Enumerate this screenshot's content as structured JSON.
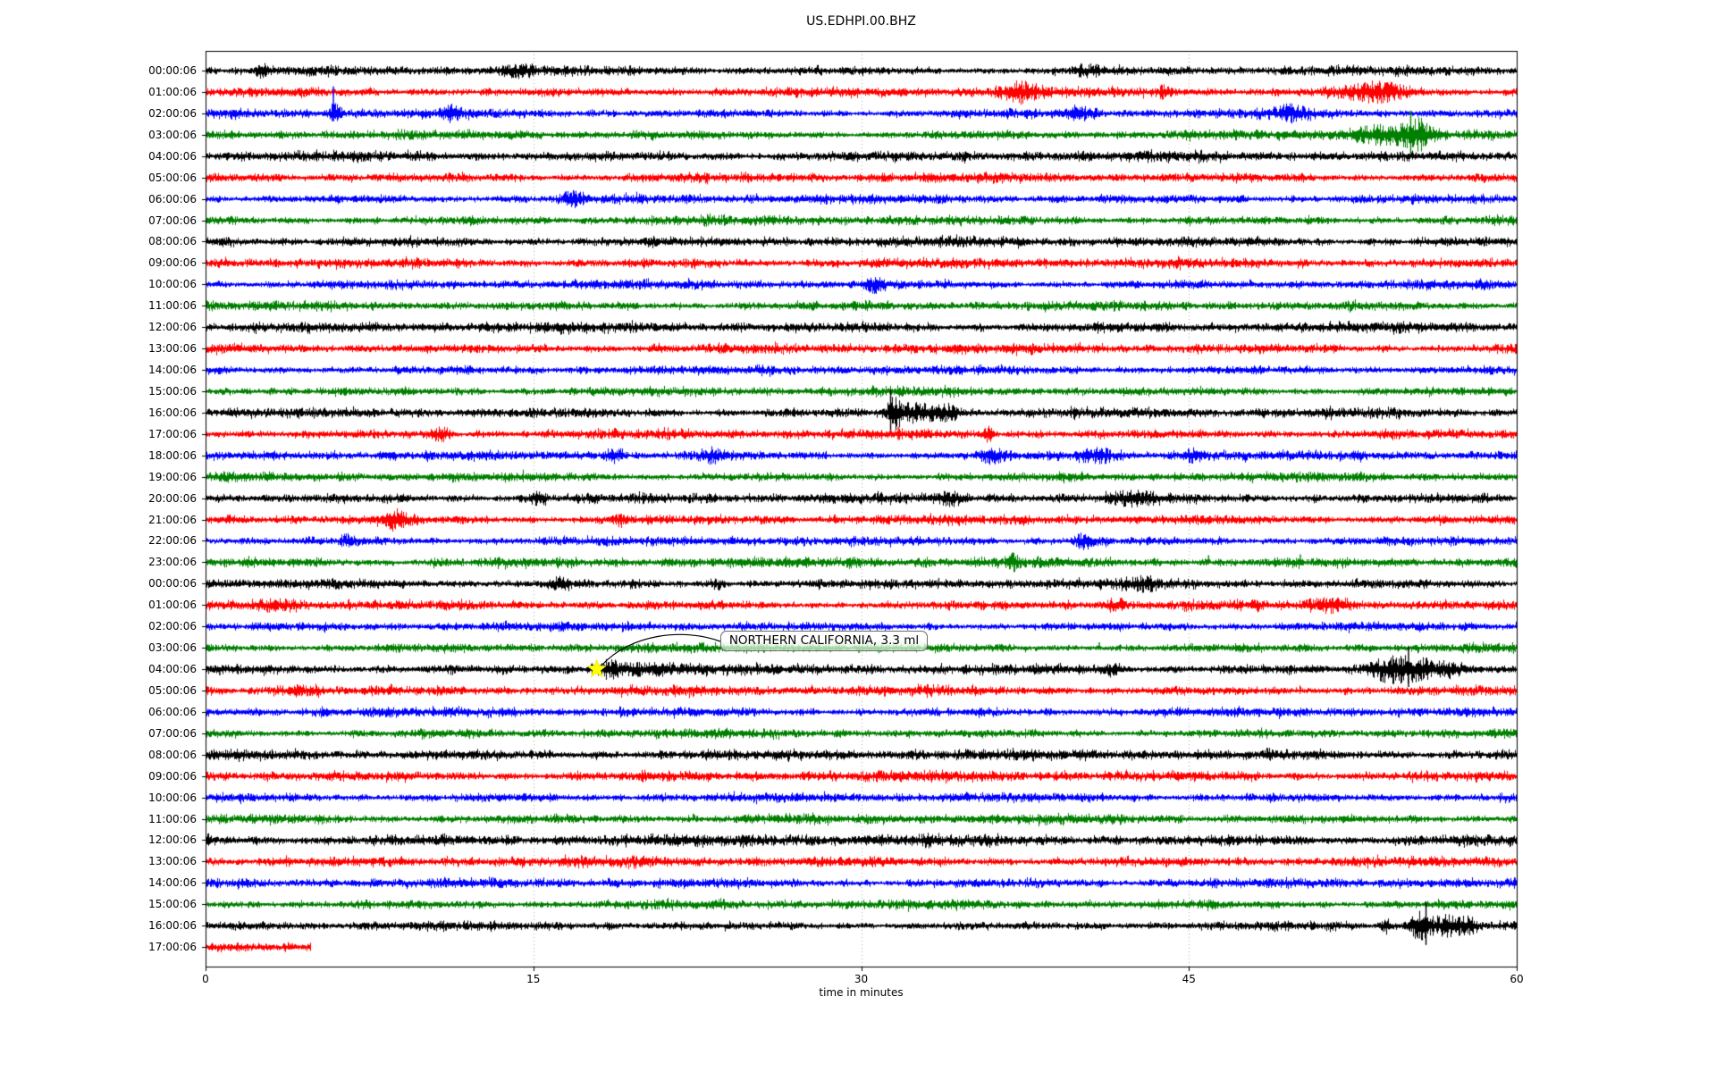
{
  "title": "US.EDHPI.00.BHZ",
  "chart_data": {
    "type": "line",
    "subtype": "seismogram-dayplot",
    "title": "US.EDHPI.00.BHZ",
    "xlabel": "time in minutes",
    "x_range": [
      0,
      60
    ],
    "x_ticks": [
      "0",
      "15",
      "30",
      "45",
      "60"
    ],
    "grid_minutes": [
      15,
      30,
      45
    ],
    "grid_on": true,
    "trace_color_cycle": [
      "#000000",
      "#ff0000",
      "#0000ff",
      "#008000"
    ],
    "rows": [
      {
        "label": "00:00:06",
        "color": "#000000",
        "amp": 2.3
      },
      {
        "label": "01:00:06",
        "color": "#ff0000",
        "amp": 2.4
      },
      {
        "label": "02:00:06",
        "color": "#0000ff",
        "amp": 2.2
      },
      {
        "label": "03:00:06",
        "color": "#008000",
        "amp": 2.2
      },
      {
        "label": "04:00:06",
        "color": "#000000",
        "amp": 2.6
      },
      {
        "label": "05:00:06",
        "color": "#ff0000",
        "amp": 2.4
      },
      {
        "label": "06:00:06",
        "color": "#0000ff",
        "amp": 2.3
      },
      {
        "label": "07:00:06",
        "color": "#008000",
        "amp": 2.3
      },
      {
        "label": "08:00:06",
        "color": "#000000",
        "amp": 2.5
      },
      {
        "label": "09:00:06",
        "color": "#ff0000",
        "amp": 2.5
      },
      {
        "label": "10:00:06",
        "color": "#0000ff",
        "amp": 2.3
      },
      {
        "label": "11:00:06",
        "color": "#008000",
        "amp": 2.3
      },
      {
        "label": "12:00:06",
        "color": "#000000",
        "amp": 2.6
      },
      {
        "label": "13:00:06",
        "color": "#ff0000",
        "amp": 2.5
      },
      {
        "label": "14:00:06",
        "color": "#0000ff",
        "amp": 2.3
      },
      {
        "label": "15:00:06",
        "color": "#008000",
        "amp": 2.3
      },
      {
        "label": "16:00:06",
        "color": "#000000",
        "amp": 2.4
      },
      {
        "label": "17:00:06",
        "color": "#ff0000",
        "amp": 2.4
      },
      {
        "label": "18:00:06",
        "color": "#0000ff",
        "amp": 2.3
      },
      {
        "label": "19:00:06",
        "color": "#008000",
        "amp": 2.2
      },
      {
        "label": "20:00:06",
        "color": "#000000",
        "amp": 2.5
      },
      {
        "label": "21:00:06",
        "color": "#ff0000",
        "amp": 2.4
      },
      {
        "label": "22:00:06",
        "color": "#0000ff",
        "amp": 2.3
      },
      {
        "label": "23:00:06",
        "color": "#008000",
        "amp": 2.6
      },
      {
        "label": "00:00:06",
        "color": "#000000",
        "amp": 2.4
      },
      {
        "label": "01:00:06",
        "color": "#ff0000",
        "amp": 2.3
      },
      {
        "label": "02:00:06",
        "color": "#0000ff",
        "amp": 2.2
      },
      {
        "label": "03:00:06",
        "color": "#008000",
        "amp": 2.2
      },
      {
        "label": "04:00:06",
        "color": "#000000",
        "amp": 2.4
      },
      {
        "label": "05:00:06",
        "color": "#ff0000",
        "amp": 2.5
      },
      {
        "label": "06:00:06",
        "color": "#0000ff",
        "amp": 2.3
      },
      {
        "label": "07:00:06",
        "color": "#008000",
        "amp": 2.2
      },
      {
        "label": "08:00:06",
        "color": "#000000",
        "amp": 2.7
      },
      {
        "label": "09:00:06",
        "color": "#ff0000",
        "amp": 2.7
      },
      {
        "label": "10:00:06",
        "color": "#0000ff",
        "amp": 2.3
      },
      {
        "label": "11:00:06",
        "color": "#008000",
        "amp": 2.4
      },
      {
        "label": "12:00:06",
        "color": "#000000",
        "amp": 3.0
      },
      {
        "label": "13:00:06",
        "color": "#ff0000",
        "amp": 2.6
      },
      {
        "label": "14:00:06",
        "color": "#0000ff",
        "amp": 2.4
      },
      {
        "label": "15:00:06",
        "color": "#008000",
        "amp": 2.3
      },
      {
        "label": "16:00:06",
        "color": "#000000",
        "amp": 2.1
      },
      {
        "label": "17:00:06",
        "color": "#ff0000",
        "amp": 2.4,
        "xmax_min": 4.8
      }
    ],
    "events": [
      {
        "row": 0,
        "type": "burst",
        "t": 2.6,
        "dur": 0.4,
        "amp": 3.0
      },
      {
        "row": 0,
        "type": "burst",
        "t": 14.2,
        "dur": 1.2,
        "amp": 3.2
      },
      {
        "row": 0,
        "type": "burst",
        "t": 40.3,
        "dur": 0.8,
        "amp": 3.0
      },
      {
        "row": 1,
        "type": "burst",
        "t": 37.3,
        "dur": 1.6,
        "amp": 5.5
      },
      {
        "row": 1,
        "type": "burst",
        "t": 43.9,
        "dur": 0.5,
        "amp": 3.5
      },
      {
        "row": 1,
        "type": "burst",
        "t": 53.5,
        "dur": 2.4,
        "amp": 5.5
      },
      {
        "row": 2,
        "type": "spike",
        "t": 5.85,
        "amp": 30,
        "dir": "up"
      },
      {
        "row": 2,
        "type": "burst",
        "t": 5.9,
        "dur": 0.5,
        "amp": 5.0
      },
      {
        "row": 2,
        "type": "burst",
        "t": 11.2,
        "dur": 0.7,
        "amp": 4.0
      },
      {
        "row": 2,
        "type": "burst",
        "t": 39.9,
        "dur": 1.2,
        "amp": 3.6
      },
      {
        "row": 2,
        "type": "burst",
        "t": 49.6,
        "dur": 1.4,
        "amp": 4.2
      },
      {
        "row": 3,
        "type": "burst",
        "t": 54.0,
        "dur": 3.0,
        "amp": 5.5
      },
      {
        "row": 3,
        "type": "spike",
        "t": 55.15,
        "amp": 27,
        "dir": "both"
      },
      {
        "row": 3,
        "type": "burst",
        "t": 55.5,
        "dur": 1.0,
        "amp": 7.0
      },
      {
        "row": 5,
        "type": "spike",
        "t": 47.8,
        "amp": 4.5,
        "dir": "both"
      },
      {
        "row": 6,
        "type": "burst",
        "t": 16.8,
        "dur": 0.8,
        "amp": 3.6
      },
      {
        "row": 10,
        "type": "burst",
        "t": 30.6,
        "dur": 0.8,
        "amp": 3.4
      },
      {
        "row": 16,
        "type": "spike",
        "t": 31.35,
        "amp": 26,
        "dir": "both"
      },
      {
        "row": 16,
        "type": "burst",
        "t": 31.5,
        "dur": 0.5,
        "amp": 9.0
      },
      {
        "row": 16,
        "type": "burst",
        "t": 32.6,
        "dur": 1.8,
        "amp": 5.5
      },
      {
        "row": 16,
        "type": "burst",
        "t": 34.0,
        "dur": 0.8,
        "amp": 4.0
      },
      {
        "row": 16,
        "type": "spike",
        "t": 47.5,
        "amp": 4.0,
        "dir": "both"
      },
      {
        "row": 17,
        "type": "burst",
        "t": 10.8,
        "dur": 0.6,
        "amp": 3.6
      },
      {
        "row": 17,
        "type": "spike",
        "t": 31.7,
        "amp": 8.0,
        "dir": "both"
      },
      {
        "row": 17,
        "type": "burst",
        "t": 35.8,
        "dur": 0.4,
        "amp": 3.5
      },
      {
        "row": 18,
        "type": "burst",
        "t": 18.6,
        "dur": 0.7,
        "amp": 3.8
      },
      {
        "row": 18,
        "type": "burst",
        "t": 23.2,
        "dur": 0.9,
        "amp": 4.0
      },
      {
        "row": 18,
        "type": "burst",
        "t": 36.0,
        "dur": 1.0,
        "amp": 3.6
      },
      {
        "row": 18,
        "type": "burst",
        "t": 40.8,
        "dur": 1.4,
        "amp": 3.8
      },
      {
        "row": 18,
        "type": "burst",
        "t": 45.3,
        "dur": 0.8,
        "amp": 3.6
      },
      {
        "row": 19,
        "type": "spike",
        "t": 49.3,
        "amp": 6.0,
        "dir": "down"
      },
      {
        "row": 19,
        "type": "spike",
        "t": 52.9,
        "amp": 5.0,
        "dir": "up"
      },
      {
        "row": 20,
        "type": "burst",
        "t": 15.2,
        "dur": 0.6,
        "amp": 3.4
      },
      {
        "row": 20,
        "type": "burst",
        "t": 34.2,
        "dur": 0.8,
        "amp": 3.2
      },
      {
        "row": 20,
        "type": "burst",
        "t": 42.5,
        "dur": 2.0,
        "amp": 3.2
      },
      {
        "row": 21,
        "type": "burst",
        "t": 8.6,
        "dur": 1.0,
        "amp": 5.5
      },
      {
        "row": 21,
        "type": "burst",
        "t": 19.0,
        "dur": 0.6,
        "amp": 3.6
      },
      {
        "row": 21,
        "type": "spike",
        "t": 30.9,
        "amp": 4.5,
        "dir": "both"
      },
      {
        "row": 22,
        "type": "burst",
        "t": 6.5,
        "dur": 0.5,
        "amp": 3.4
      },
      {
        "row": 22,
        "type": "burst",
        "t": 40.2,
        "dur": 0.9,
        "amp": 4.0
      },
      {
        "row": 23,
        "type": "burst",
        "t": 36.9,
        "dur": 0.5,
        "amp": 4.0
      },
      {
        "row": 23,
        "type": "spike",
        "t": 45.9,
        "amp": 8.0,
        "dir": "up"
      },
      {
        "row": 23,
        "type": "spike",
        "t": 50.1,
        "amp": 9.0,
        "dir": "up"
      },
      {
        "row": 24,
        "type": "burst",
        "t": 16.1,
        "dur": 0.7,
        "amp": 3.4
      },
      {
        "row": 24,
        "type": "burst",
        "t": 23.4,
        "dur": 0.5,
        "amp": 3.2
      },
      {
        "row": 24,
        "type": "burst",
        "t": 43.0,
        "dur": 1.2,
        "amp": 3.2
      },
      {
        "row": 25,
        "type": "burst",
        "t": 3.2,
        "dur": 2.0,
        "amp": 3.0
      },
      {
        "row": 25,
        "type": "spike",
        "t": 10.3,
        "amp": 5.0,
        "dir": "both"
      },
      {
        "row": 25,
        "type": "burst",
        "t": 41.5,
        "dur": 0.8,
        "amp": 3.4
      },
      {
        "row": 25,
        "type": "burst",
        "t": 51.5,
        "dur": 1.5,
        "amp": 3.6
      },
      {
        "row": 27,
        "type": "spike",
        "t": 28.6,
        "amp": 5.0,
        "dir": "down"
      },
      {
        "row": 27,
        "type": "spike",
        "t": 29.9,
        "amp": 6.0,
        "dir": "down"
      },
      {
        "row": 27,
        "type": "spike",
        "t": 30.9,
        "amp": 5.0,
        "dir": "down"
      },
      {
        "row": 27,
        "type": "spike",
        "t": 40.9,
        "amp": 6.0,
        "dir": "up"
      },
      {
        "row": 28,
        "type": "spike",
        "t": 0.65,
        "amp": 7.0,
        "dir": "down"
      },
      {
        "row": 28,
        "type": "spike",
        "t": 1.45,
        "amp": 6.0,
        "dir": "both"
      },
      {
        "row": 28,
        "type": "burst",
        "t": 18.4,
        "dur": 0.8,
        "amp": 4.5
      },
      {
        "row": 28,
        "type": "burst",
        "t": 20.5,
        "dur": 4.0,
        "amp": 3.0
      },
      {
        "row": 28,
        "type": "burst",
        "t": 41.5,
        "dur": 0.6,
        "amp": 3.5
      },
      {
        "row": 28,
        "type": "spike",
        "t": 49.7,
        "amp": 4.0,
        "dir": "both"
      },
      {
        "row": 28,
        "type": "spike",
        "t": 50.9,
        "amp": 4.0,
        "dir": "both"
      },
      {
        "row": 28,
        "type": "burst",
        "t": 54.2,
        "dur": 1.6,
        "amp": 8.0
      },
      {
        "row": 28,
        "type": "spike",
        "t": 55.05,
        "amp": 25,
        "dir": "both"
      },
      {
        "row": 28,
        "type": "burst",
        "t": 55.7,
        "dur": 1.6,
        "amp": 6.0
      },
      {
        "row": 28,
        "type": "burst",
        "t": 57.0,
        "dur": 1.0,
        "amp": 4.0
      },
      {
        "row": 29,
        "type": "burst",
        "t": 4.2,
        "dur": 1.5,
        "amp": 3.2
      },
      {
        "row": 40,
        "type": "burst",
        "t": 54.0,
        "dur": 0.3,
        "amp": 4.0
      },
      {
        "row": 40,
        "type": "burst",
        "t": 55.5,
        "dur": 0.6,
        "amp": 8.0
      },
      {
        "row": 40,
        "type": "spike",
        "t": 55.85,
        "amp": 27,
        "dir": "both"
      },
      {
        "row": 40,
        "type": "burst",
        "t": 56.6,
        "dur": 1.4,
        "amp": 6.0
      },
      {
        "row": 40,
        "type": "burst",
        "t": 57.8,
        "dur": 0.8,
        "amp": 4.0
      }
    ],
    "annotation": {
      "text": "NORTHERN CALIFORNIA, 3.3 ml",
      "row": 28,
      "time_min": 17.9,
      "marker": "yellow-star",
      "marker_color": "#ffff00"
    },
    "gridline_color": "#aaaaaa",
    "background_color": "#ffffff"
  }
}
